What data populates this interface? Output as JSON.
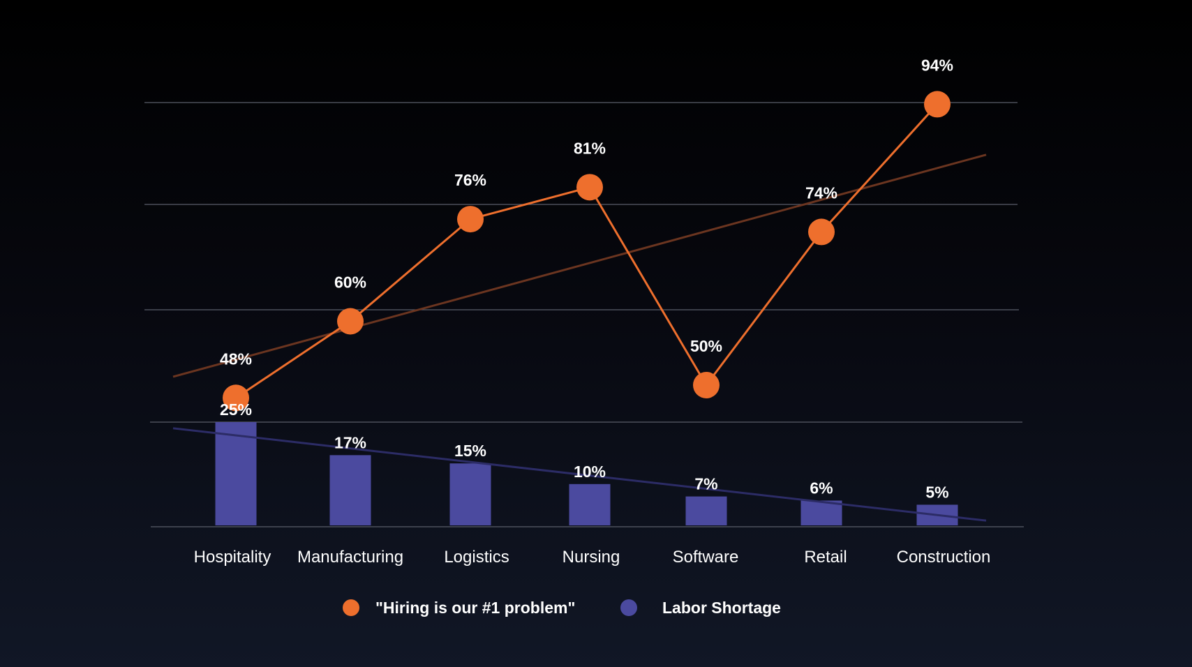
{
  "chart_data": {
    "type": "bar+line",
    "categories": [
      "Hospitality",
      "Manufacturing",
      "Logistics",
      "Nursing",
      "Software",
      "Retail",
      "Construction"
    ],
    "series": [
      {
        "name": "\"Hiring is our #1 problem\"",
        "type": "line",
        "color": "#ee6f2d",
        "values": [
          48,
          60,
          76,
          81,
          50,
          74,
          94
        ],
        "labels": [
          "48%",
          "60%",
          "76%",
          "81%",
          "50%",
          "74%",
          "94%"
        ],
        "trendline": true,
        "trendline_color": "#6b3520"
      },
      {
        "name": "Labor Shortage",
        "type": "bar",
        "color": "#4b4a9f",
        "values": [
          25,
          17,
          15,
          10,
          7,
          6,
          5
        ],
        "labels": [
          "25%",
          "17%",
          "15%",
          "10%",
          "7%",
          "6%",
          "5%"
        ],
        "trendline": true,
        "trendline_color": "#2c2c66"
      }
    ],
    "gridlines": true,
    "legend_position": "bottom-center",
    "title": "",
    "xlabel": "",
    "ylabel": ""
  }
}
